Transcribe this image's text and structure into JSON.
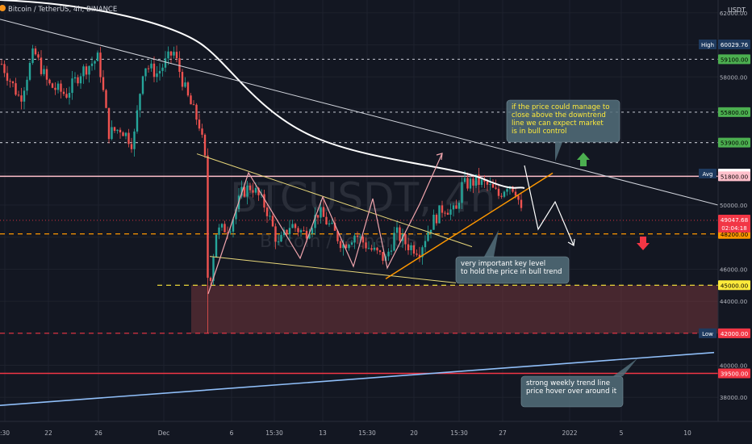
{
  "header": {
    "symbol_line": "Bitcoin / TetherUS, 4h, BINANCE",
    "currency": "USDT"
  },
  "watermark": {
    "ticker": "BTCUSDT, 4h",
    "name": "Bitcoin / TetherUS"
  },
  "chart_data": {
    "type": "candlestick",
    "ylim": [
      36500,
      62800
    ],
    "y_ticks": [
      38000,
      40000,
      44000,
      46000,
      50000,
      58000,
      62000
    ],
    "x_ticks": [
      ":30",
      "22",
      "26",
      "Dec",
      "6",
      "15:30",
      "13",
      "15:30",
      "20",
      "15:30",
      "27",
      "2022",
      "5",
      "10"
    ],
    "levels": [
      {
        "label": "High",
        "value": "60029.76",
        "price": 60029.76,
        "style": "none",
        "line": "#ffffff",
        "badge": "#1e3a5f",
        "text": "#ffffff"
      },
      {
        "label": "",
        "value": "59100.00",
        "price": 59100,
        "style": "dash",
        "line": "#b2b5be",
        "badge": "#4caf50",
        "text": "#000000"
      },
      {
        "label": "",
        "value": "55800.00",
        "price": 55800,
        "style": "dash",
        "line": "#b2b5be",
        "badge": "#4caf50",
        "text": "#000000"
      },
      {
        "label": "",
        "value": "53900.00",
        "price": 53900,
        "style": "dash",
        "line": "#b2b5be",
        "badge": "#4caf50",
        "text": "#000000"
      },
      {
        "label": "Avg",
        "value": "51969.55",
        "price": 51969.55,
        "style": "none",
        "line": "#ffffff",
        "badge": "#ffffff",
        "text": "#000000"
      },
      {
        "label": "",
        "value": "51800.00",
        "price": 51800,
        "style": "solid",
        "line": "#ffc0cb",
        "badge": "#ffc0cb",
        "text": "#000000"
      },
      {
        "label": "",
        "value": "48200.00",
        "price": 48200,
        "style": "dash",
        "line": "#ff9800",
        "badge": "#ff9800",
        "text": "#000000"
      },
      {
        "label": "",
        "value": "45000.00",
        "price": 45000,
        "style": "dash",
        "line": "#ffeb3b",
        "badge": "#ffeb3b",
        "text": "#000000"
      },
      {
        "label": "Low",
        "value": "42000.30",
        "price": 42000.3,
        "style": "none",
        "line": "#ffffff",
        "badge": "#1e3a5f",
        "text": "#ffffff"
      },
      {
        "label": "",
        "value": "42000.00",
        "price": 42000,
        "style": "dash",
        "line": "#f23645",
        "badge": "#f23645",
        "text": "#ffffff"
      },
      {
        "label": "",
        "value": "39500.00",
        "price": 39500,
        "style": "solid",
        "line": "#f23645",
        "badge": "#f23645",
        "text": "#ffffff"
      }
    ],
    "current_price": {
      "value": "49047.68",
      "countdown": "02:04:18",
      "price": 49047.68,
      "color": "#f23645"
    },
    "annotations": [
      {
        "text": [
          "if the price could manage to",
          "close above the downtrend",
          "line we can expect market",
          "is in bull control"
        ],
        "color": "#ffeb3b"
      },
      {
        "text": [
          "very important key level",
          "to hold the price in bull trend"
        ],
        "color": "#ffffff"
      },
      {
        "text": [
          "strong weekly trend line",
          "price hover over around it"
        ],
        "color": "#ffffff"
      }
    ],
    "colors": {
      "up": "#26a69a",
      "down": "#ef5350",
      "ma": "#ffffff",
      "support_zone": "#a94448"
    }
  }
}
